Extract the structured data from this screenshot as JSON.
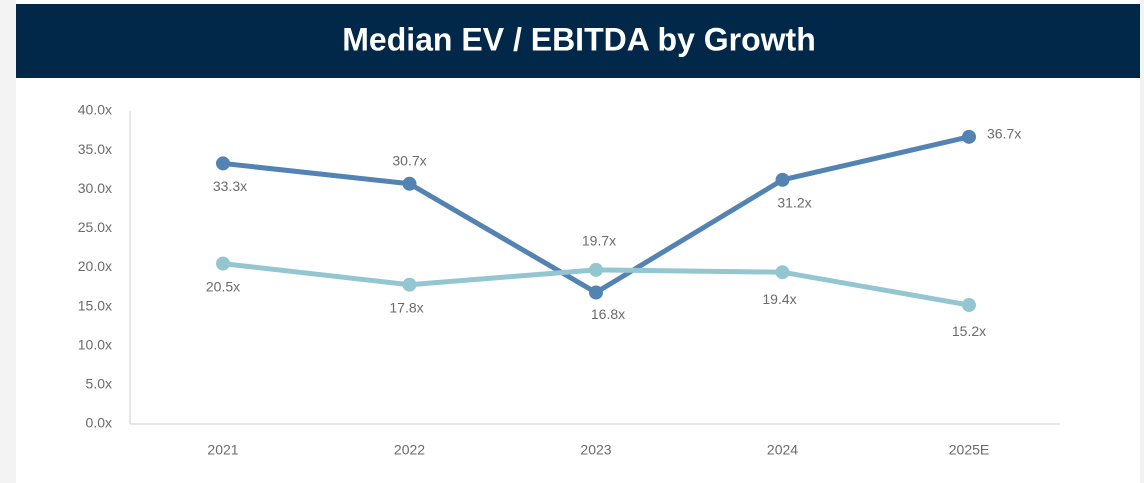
{
  "chart_data": {
    "type": "line",
    "title": "Median EV / EBITDA by Growth",
    "categories": [
      "2021",
      "2022",
      "2023",
      "2024",
      "2025E"
    ],
    "series": [
      {
        "color": "#5383b3",
        "values": [
          33.3,
          30.7,
          16.8,
          31.2,
          36.7
        ],
        "value_labels": [
          "33.3x",
          "30.7x",
          "16.8x",
          "31.2x",
          "36.7x"
        ]
      },
      {
        "color": "#93c6d1",
        "values": [
          20.5,
          17.8,
          19.7,
          19.4,
          15.2
        ],
        "value_labels": [
          "20.5x",
          "17.8x",
          "19.7x",
          "19.4x",
          "15.2x"
        ]
      }
    ],
    "ylim": [
      0,
      40
    ],
    "yticks": [
      {
        "value": 0,
        "label": "0.0x"
      },
      {
        "value": 5,
        "label": "5.0x"
      },
      {
        "value": 10,
        "label": "10.0x"
      },
      {
        "value": 15,
        "label": "15.0x"
      },
      {
        "value": 20,
        "label": "20.0x"
      },
      {
        "value": 25,
        "label": "25.0x"
      },
      {
        "value": 30,
        "label": "30.0x"
      },
      {
        "value": 35,
        "label": "35.0x"
      },
      {
        "value": 40,
        "label": "40.0x"
      }
    ],
    "grid": false
  }
}
